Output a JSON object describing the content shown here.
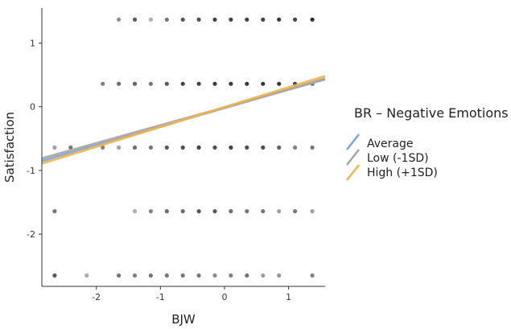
{
  "chart_data": {
    "type": "scatter",
    "title": "",
    "xlabel": "BJW",
    "ylabel": "Satisfaction",
    "xlim": [
      -2.85,
      1.57
    ],
    "ylim": [
      -2.82,
      1.55
    ],
    "xticks": [
      -2,
      -1,
      0,
      1
    ],
    "yticks": [
      -2,
      -1,
      0,
      1
    ],
    "grid": false,
    "legend": {
      "title": "BR – Negative Emotions",
      "placement": "right",
      "items": [
        {
          "label": "Average",
          "color": "#7aa6e0"
        },
        {
          "label": "Low (-1SD)",
          "color": "#a6a6a6"
        },
        {
          "label": "High (+1SD)",
          "color": "#f0b24a"
        }
      ]
    },
    "points": [
      {
        "y": 1.37,
        "x": [
          -1.65,
          -1.4,
          -1.15,
          -0.9,
          -0.65,
          -0.4,
          -0.15,
          0.1,
          0.35,
          0.6,
          0.85,
          1.1,
          1.37
        ],
        "shades": [
          0.45,
          0.7,
          0.3,
          0.55,
          0.7,
          0.75,
          0.8,
          0.8,
          0.8,
          0.8,
          0.85,
          0.8,
          0.9
        ]
      },
      {
        "y": 0.36,
        "x": [
          -1.9,
          -1.65,
          -1.4,
          -1.15,
          -0.9,
          -0.65,
          -0.4,
          -0.15,
          0.1,
          0.35,
          0.6,
          0.85,
          1.1,
          1.37
        ],
        "shades": [
          0.5,
          0.6,
          0.65,
          0.55,
          0.7,
          0.8,
          0.8,
          0.85,
          0.85,
          0.85,
          0.85,
          0.85,
          0.8,
          0.6
        ]
      },
      {
        "y": -0.64,
        "x": [
          -2.65,
          -2.4,
          -2.15,
          -1.9,
          -1.65,
          -1.4,
          -1.15,
          -0.9,
          -0.65,
          -0.4,
          -0.15,
          0.1,
          0.35,
          0.6,
          0.85,
          1.1,
          1.37
        ],
        "shades": [
          0.35,
          0.55,
          0.3,
          0.5,
          0.35,
          0.6,
          0.55,
          0.7,
          0.75,
          0.8,
          0.75,
          0.8,
          0.75,
          0.75,
          0.65,
          0.5,
          0.55
        ]
      },
      {
        "y": -1.64,
        "x": [
          -2.65,
          -1.4,
          -1.15,
          -0.9,
          -0.65,
          -0.4,
          -0.15,
          0.1,
          0.35,
          0.6,
          0.85,
          1.1,
          1.37
        ],
        "shades": [
          0.55,
          0.3,
          0.5,
          0.6,
          0.6,
          0.7,
          0.7,
          0.6,
          0.55,
          0.55,
          0.35,
          0.55,
          0.35
        ]
      },
      {
        "y": -2.65,
        "x": [
          -2.65,
          -2.15,
          -1.65,
          -1.4,
          -1.15,
          -0.9,
          -0.65,
          -0.4,
          -0.15,
          0.1,
          0.35,
          0.6,
          0.85,
          1.37
        ],
        "shades": [
          0.7,
          0.3,
          0.55,
          0.5,
          0.55,
          0.55,
          0.55,
          0.55,
          0.45,
          0.5,
          0.55,
          0.35,
          0.4,
          0.5
        ]
      }
    ],
    "series": [
      {
        "name": "Average",
        "color": "#7aa6e0",
        "x": [
          -2.85,
          1.57
        ],
        "y": [
          -0.85,
          0.44
        ]
      },
      {
        "name": "Low (-1SD)",
        "color": "#a6a6a6",
        "x": [
          -2.85,
          1.57
        ],
        "y": [
          -0.81,
          0.43
        ]
      },
      {
        "name": "High (+1SD)",
        "color": "#f0b24a",
        "x": [
          -2.85,
          1.57
        ],
        "y": [
          -0.89,
          0.48
        ]
      }
    ]
  }
}
